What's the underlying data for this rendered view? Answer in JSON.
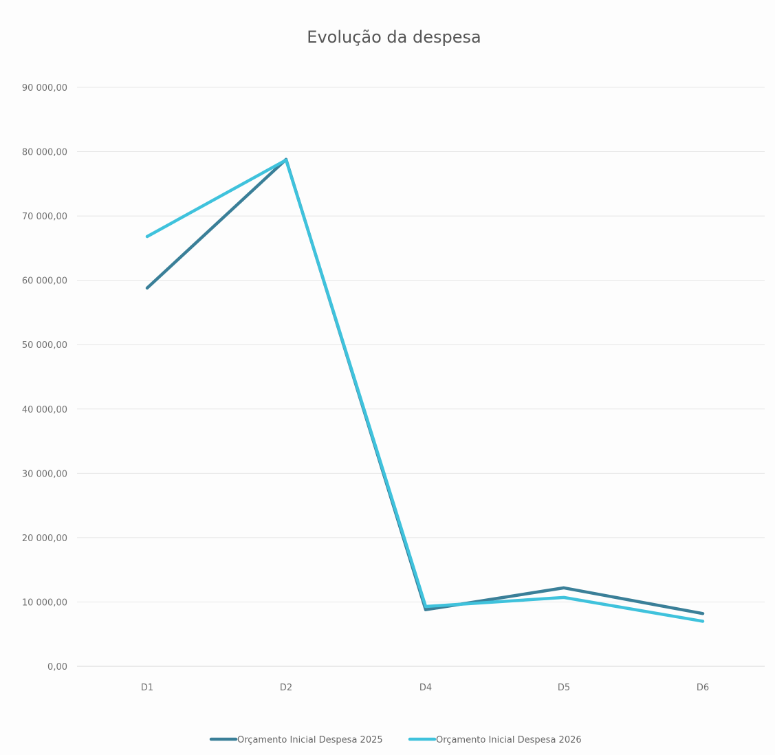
{
  "chart_data": {
    "type": "line",
    "title": "Evolução da despesa",
    "xlabel": "",
    "ylabel": "",
    "categories": [
      "D1",
      "D2",
      "D4",
      "D5",
      "D6"
    ],
    "series": [
      {
        "name": "Orçamento Inicial  Despesa 2025",
        "color": "#3a7f98",
        "values": [
          58800,
          78800,
          8800,
          12200,
          8200
        ]
      },
      {
        "name": "Orçamento Inicial  Despesa 2026",
        "color": "#3fc2dc",
        "values": [
          66800,
          78700,
          9300,
          10700,
          7000
        ]
      }
    ],
    "ylim": [
      0,
      90000
    ],
    "yticks": [
      0,
      10000,
      20000,
      30000,
      40000,
      50000,
      60000,
      70000,
      80000,
      90000
    ],
    "ytick_labels": [
      "0,00",
      "10 000,00",
      "20 000,00",
      "30 000,00",
      "40 000,00",
      "50 000,00",
      "60 000,00",
      "70 000,00",
      "80 000,00",
      "90 000,00"
    ],
    "grid": true,
    "legend_position": "bottom"
  }
}
